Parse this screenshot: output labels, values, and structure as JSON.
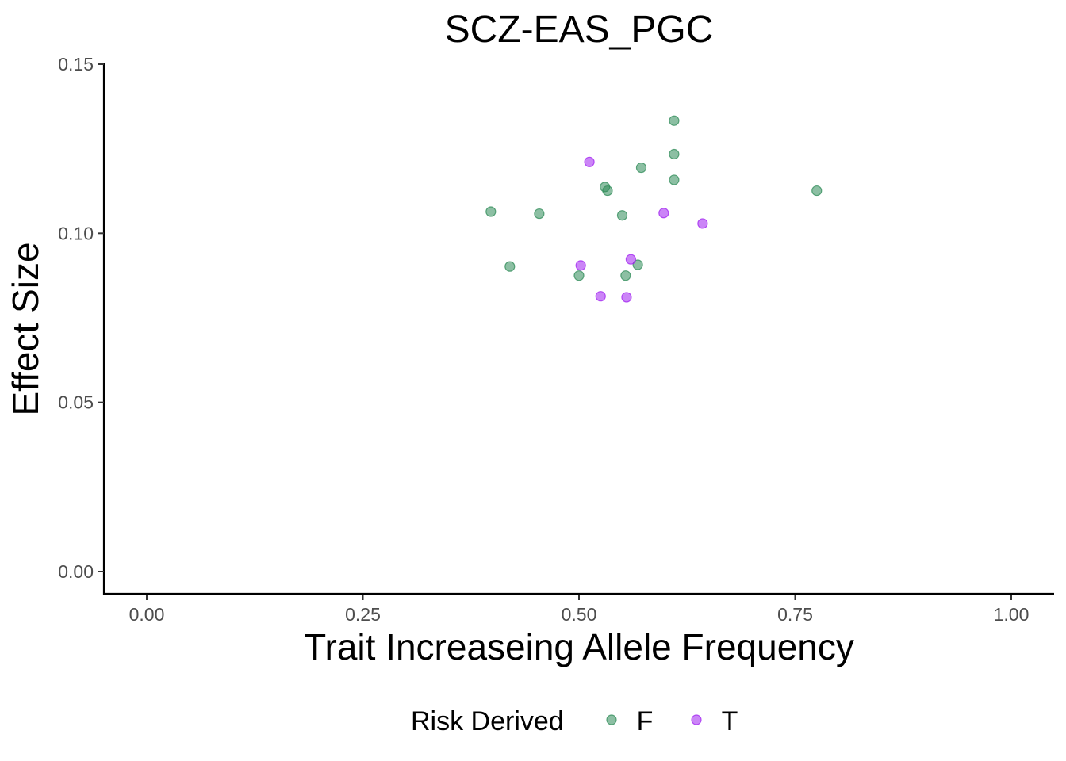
{
  "chart_data": {
    "type": "scatter",
    "title": "SCZ-EAS_PGC",
    "xlabel": "Trait Increaseing Allele Frequency",
    "ylabel": "Effect Size",
    "xlim": [
      0,
      1
    ],
    "ylim": [
      0,
      0.15
    ],
    "x_ticks": [
      "0.00",
      "0.25",
      "0.50",
      "0.75",
      "1.00"
    ],
    "y_ticks": [
      "0.00",
      "0.05",
      "0.10",
      "0.15"
    ],
    "grid": false,
    "legend": {
      "title": "Risk Derived",
      "position": "bottom",
      "entries": [
        "F",
        "T"
      ]
    },
    "series": [
      {
        "name": "F",
        "color": "#2e8b57",
        "points": [
          {
            "x": 0.61,
            "y": 0.1333
          },
          {
            "x": 0.61,
            "y": 0.1234
          },
          {
            "x": 0.572,
            "y": 0.1194
          },
          {
            "x": 0.61,
            "y": 0.1158
          },
          {
            "x": 0.53,
            "y": 0.1137
          },
          {
            "x": 0.533,
            "y": 0.1126
          },
          {
            "x": 0.775,
            "y": 0.1126
          },
          {
            "x": 0.398,
            "y": 0.1064
          },
          {
            "x": 0.454,
            "y": 0.1058
          },
          {
            "x": 0.55,
            "y": 0.1053
          },
          {
            "x": 0.42,
            "y": 0.0902
          },
          {
            "x": 0.568,
            "y": 0.0907
          },
          {
            "x": 0.5,
            "y": 0.0875
          },
          {
            "x": 0.554,
            "y": 0.0875
          }
        ]
      },
      {
        "name": "T",
        "color": "#a020f0",
        "points": [
          {
            "x": 0.512,
            "y": 0.1211
          },
          {
            "x": 0.598,
            "y": 0.106
          },
          {
            "x": 0.643,
            "y": 0.1029
          },
          {
            "x": 0.56,
            "y": 0.0923
          },
          {
            "x": 0.502,
            "y": 0.0905
          },
          {
            "x": 0.525,
            "y": 0.0814
          },
          {
            "x": 0.555,
            "y": 0.0811
          }
        ]
      }
    ]
  }
}
